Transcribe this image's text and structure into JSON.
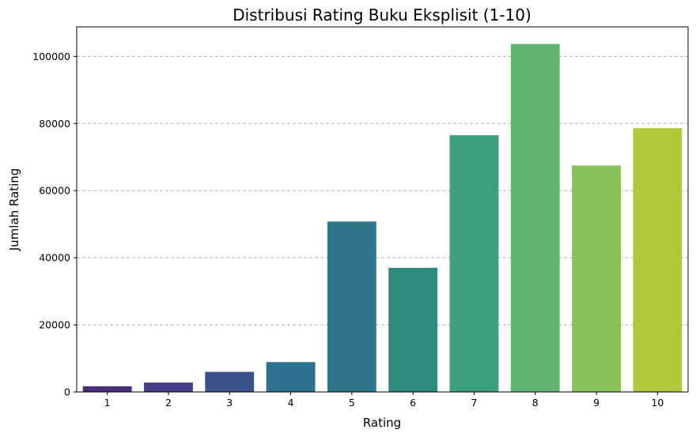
{
  "chart_data": {
    "type": "bar",
    "title": "Distribusi Rating Buku Eksplisit (1-10)",
    "xlabel": "Rating",
    "ylabel": "Jumlah Rating",
    "categories": [
      "1",
      "2",
      "3",
      "4",
      "5",
      "6",
      "7",
      "8",
      "9",
      "10"
    ],
    "values": [
      1700,
      2800,
      6000,
      8900,
      50800,
      37000,
      76500,
      103700,
      67500,
      78600
    ],
    "ylim": [
      0,
      108800
    ],
    "yticks": [
      0,
      20000,
      40000,
      60000,
      80000,
      100000
    ],
    "ytick_labels": [
      "0",
      "20000",
      "40000",
      "60000",
      "80000",
      "100000"
    ],
    "grid": "y-dashed",
    "colors": [
      "#472d7b",
      "#433e85",
      "#3b528b",
      "#2c728e",
      "#2f768a",
      "#2e8b7d",
      "#3ba07c",
      "#5fb56f",
      "#88c25a",
      "#b0c83a"
    ]
  }
}
